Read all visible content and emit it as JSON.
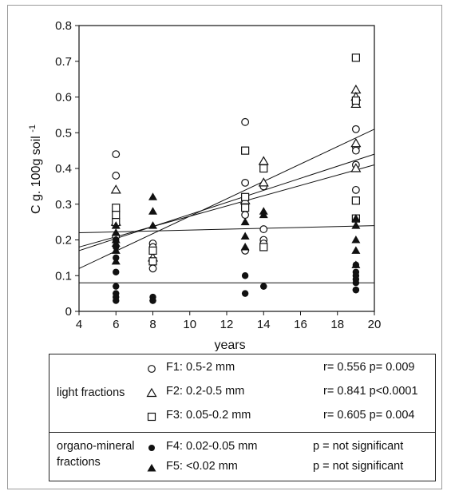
{
  "chart_data": {
    "type": "scatter",
    "xlabel": "years",
    "ylabel": "C g. 100g soil",
    "ylabel_sup": "-1",
    "xlim": [
      4,
      20
    ],
    "ylim": [
      0,
      0.8
    ],
    "xticks": [
      "4",
      "6",
      "8",
      "10",
      "12",
      "14",
      "16",
      "18",
      "20"
    ],
    "yticks": [
      "0",
      "0.1",
      "0.2",
      "0.3",
      "0.4",
      "0.5",
      "0.6",
      "0.7",
      "0.8"
    ],
    "series": [
      {
        "name": "F1: 0.5-2 mm",
        "marker": "circle-open",
        "points": [
          [
            6,
            0.44
          ],
          [
            6,
            0.38
          ],
          [
            6,
            0.28
          ],
          [
            6,
            0.21
          ],
          [
            8,
            0.19
          ],
          [
            8,
            0.18
          ],
          [
            8,
            0.17
          ],
          [
            8,
            0.12
          ],
          [
            13,
            0.53
          ],
          [
            13,
            0.36
          ],
          [
            13,
            0.27
          ],
          [
            13,
            0.17
          ],
          [
            14,
            0.35
          ],
          [
            14,
            0.23
          ],
          [
            14,
            0.2
          ],
          [
            14,
            0.19
          ],
          [
            19,
            0.51
          ],
          [
            19,
            0.46
          ],
          [
            19,
            0.45
          ],
          [
            19,
            0.41
          ],
          [
            19,
            0.34
          ]
        ],
        "fit": [
          [
            4,
            0.17
          ],
          [
            20,
            0.44
          ]
        ]
      },
      {
        "name": "F2: 0.2-0.5 mm",
        "marker": "triangle-open",
        "points": [
          [
            6,
            0.34
          ],
          [
            6,
            0.25
          ],
          [
            8,
            0.15
          ],
          [
            13,
            0.31
          ],
          [
            14,
            0.42
          ],
          [
            14,
            0.36
          ],
          [
            19,
            0.62
          ],
          [
            19,
            0.6
          ],
          [
            19,
            0.58
          ],
          [
            19,
            0.47
          ],
          [
            19,
            0.4
          ]
        ],
        "fit": [
          [
            4,
            0.12
          ],
          [
            20,
            0.51
          ]
        ]
      },
      {
        "name": "F3: 0.05-0.2 mm",
        "marker": "square-open",
        "points": [
          [
            6,
            0.29
          ],
          [
            6,
            0.27
          ],
          [
            6,
            0.25
          ],
          [
            8,
            0.17
          ],
          [
            8,
            0.14
          ],
          [
            13,
            0.45
          ],
          [
            13,
            0.32
          ],
          [
            13,
            0.29
          ],
          [
            14,
            0.4
          ],
          [
            14,
            0.18
          ],
          [
            19,
            0.71
          ],
          [
            19,
            0.59
          ],
          [
            19,
            0.31
          ],
          [
            19,
            0.26
          ]
        ],
        "fit": [
          [
            4,
            0.18
          ],
          [
            20,
            0.41
          ]
        ]
      },
      {
        "name": "F4: 0.02-0.05 mm",
        "marker": "circle-filled",
        "points": [
          [
            6,
            0.2
          ],
          [
            6,
            0.18
          ],
          [
            6,
            0.15
          ],
          [
            6,
            0.11
          ],
          [
            6,
            0.07
          ],
          [
            6,
            0.05
          ],
          [
            6,
            0.04
          ],
          [
            6,
            0.03
          ],
          [
            8,
            0.04
          ],
          [
            8,
            0.03
          ],
          [
            8,
            0.03
          ],
          [
            13,
            0.1
          ],
          [
            13,
            0.05
          ],
          [
            14,
            0.07
          ],
          [
            14,
            0.07
          ],
          [
            19,
            0.13
          ],
          [
            19,
            0.11
          ],
          [
            19,
            0.1
          ],
          [
            19,
            0.09
          ],
          [
            19,
            0.08
          ],
          [
            19,
            0.06
          ],
          [
            19,
            0.06
          ]
        ],
        "fit": [
          [
            4,
            0.08
          ],
          [
            20,
            0.08
          ]
        ]
      },
      {
        "name": "F5: <0.02 mm",
        "marker": "triangle-filled",
        "points": [
          [
            6,
            0.24
          ],
          [
            6,
            0.22
          ],
          [
            6,
            0.2
          ],
          [
            6,
            0.19
          ],
          [
            6,
            0.17
          ],
          [
            6,
            0.14
          ],
          [
            8,
            0.32
          ],
          [
            8,
            0.28
          ],
          [
            8,
            0.24
          ],
          [
            13,
            0.25
          ],
          [
            13,
            0.21
          ],
          [
            13,
            0.18
          ],
          [
            14,
            0.28
          ],
          [
            14,
            0.27
          ],
          [
            19,
            0.26
          ],
          [
            19,
            0.24
          ],
          [
            19,
            0.2
          ],
          [
            19,
            0.17
          ],
          [
            19,
            0.13
          ]
        ],
        "fit": [
          [
            4,
            0.22
          ],
          [
            20,
            0.24
          ]
        ]
      }
    ]
  },
  "legend": {
    "groups": [
      {
        "label_lines": [
          "light fractions"
        ],
        "rows": [
          {
            "marker": "circle-open",
            "name": "F1: 0.5-2 mm",
            "stat": "r= 0.556 p= 0.009"
          },
          {
            "marker": "triangle-open",
            "name": "F2: 0.2-0.5 mm",
            "stat": "r= 0.841 p<0.0001"
          },
          {
            "marker": "square-open",
            "name": "F3: 0.05-0.2 mm",
            "stat": "r= 0.605 p= 0.004"
          }
        ]
      },
      {
        "label_lines": [
          "organo-mineral",
          "fractions"
        ],
        "rows": [
          {
            "marker": "circle-filled",
            "name": "F4: 0.02-0.05 mm",
            "stat": "p = not significant"
          },
          {
            "marker": "triangle-filled",
            "name": "F5: <0.02 mm",
            "stat": "p = not significant"
          }
        ]
      }
    ]
  }
}
